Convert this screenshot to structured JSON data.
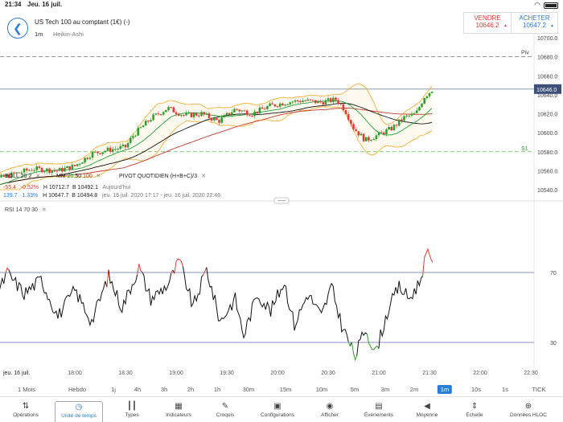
{
  "status": {
    "time": "21:34",
    "date": "Jeu. 16 juil."
  },
  "header": {
    "instrument": "US Tech 100 au comptant (1€) (-)",
    "timeframe": "1m",
    "chart_type": "Heikin-Ashi"
  },
  "trade": {
    "sell_label": "VENDRE",
    "sell_price": "10646.2",
    "buy_label": "ACHETER",
    "buy_price": "10647.2"
  },
  "price_axis": {
    "ticks": [
      "10700.0",
      "10680.0",
      "10660.0",
      "10640.0",
      "10620.0",
      "10600.0",
      "10580.0",
      "10560.0",
      "10540.0"
    ],
    "current_price": "10646.0",
    "piv_label": "Piv",
    "s1_label": "S1"
  },
  "legend": {
    "boll": {
      "name": "BOLL",
      "p1": "20",
      "p2": "2"
    },
    "mm": {
      "name": "MM",
      "p1": "20",
      "p2": "50",
      "p3": "100"
    },
    "pivot": {
      "name": "PIVOT",
      "p1": "QUOTIDIEN",
      "p2": "(H+B+C)/3"
    },
    "row1": {
      "change": "-55.4",
      "change_pct": "-0.52%",
      "high": "H 10712.7",
      "low": "B 10492.1",
      "period": "Aujourd'hui"
    },
    "row2": {
      "change": "139.7",
      "change_pct": "1.33%",
      "high": "H 10647.7",
      "low": "B 10494.8",
      "period": "jeu. 16 juil. 2020 17:17 - jeu. 16 juil. 2020 22:46"
    },
    "close_symbol": "✕"
  },
  "rsi": {
    "name": "RSI",
    "p1": "14",
    "p2": "70",
    "p3": "30",
    "level_high": "70",
    "level_low": "30"
  },
  "time_axis": {
    "date": "jeu. 16 juil.",
    "ticks": [
      "18:00",
      "18:30",
      "19:00",
      "19:30",
      "20:00",
      "20:30",
      "21:00",
      "21:30",
      "22:00",
      "22:30"
    ]
  },
  "ranges": [
    "1 Mois",
    "Hebdo",
    "1j",
    "4h",
    "3h",
    "2h",
    "1h",
    "30m",
    "15m",
    "10m",
    "5m",
    "3m",
    "2m",
    "1m",
    "10s",
    "1s",
    "TICK"
  ],
  "active_range": "1m",
  "toolbar": [
    {
      "label": "Opérations",
      "icon": "operations-icon"
    },
    {
      "label": "Unité de temps",
      "icon": "clock-icon"
    },
    {
      "label": "Types",
      "icon": "candles-icon"
    },
    {
      "label": "Indicateurs",
      "icon": "indicators-icon"
    },
    {
      "label": "Croquis",
      "icon": "pencil-icon"
    },
    {
      "label": "Configurations",
      "icon": "layout-icon"
    },
    {
      "label": "Afficher",
      "icon": "eye-icon"
    },
    {
      "label": "Évènements",
      "icon": "calendar-icon"
    },
    {
      "label": "Moyenne",
      "icon": "volume-icon"
    },
    {
      "label": "Échelle",
      "icon": "scale-icon"
    },
    {
      "label": "Données HLOC",
      "icon": "crosshair-icon"
    }
  ],
  "colors": {
    "accent": "#2c7bd6",
    "up": "#2ca02c",
    "down": "#e53935",
    "boll": "#f5a623",
    "ma20": "#1f9e3a",
    "ma50": "#c0392b",
    "ma100": "#111111"
  }
}
